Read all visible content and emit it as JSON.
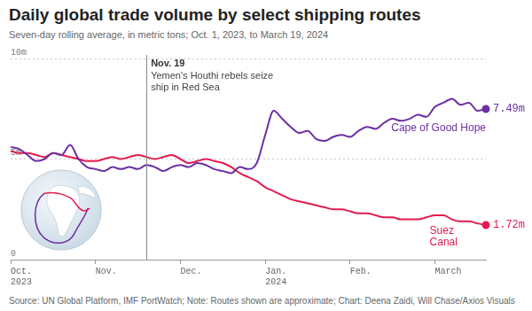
{
  "chart_data": {
    "type": "line",
    "title": "Daily global trade volume by select shipping routes",
    "subtitle": "Seven-day rolling average, in metric tons; Oct. 1, 2023, to March 19, 2024",
    "source": "Source: UN Global Platform, IMF PortWatch; Note: Routes shown are approximate; Chart: Deena Zaidi, Will Chase/Axios Visuals",
    "categories": [
      "Oct. 2023",
      null,
      null,
      null,
      null,
      null,
      null,
      null,
      null,
      null,
      "Nov.",
      null,
      null,
      null,
      null,
      null,
      null,
      null,
      null,
      null,
      "Dec.",
      null,
      null,
      null,
      null,
      null,
      null,
      null,
      null,
      null,
      "Jan. 2024",
      null,
      null,
      null,
      null,
      null,
      null,
      null,
      null,
      null,
      "Feb.",
      null,
      null,
      null,
      null,
      null,
      null,
      null,
      null,
      null,
      "March",
      null,
      null,
      null,
      null,
      null,
      null
    ],
    "series": [
      {
        "name": "Cape of Good Hope",
        "color": "#6b2fa3",
        "values": [
          5.6,
          5.5,
          5.2,
          4.9,
          5.0,
          5.3,
          5.2,
          5.7,
          5.0,
          4.6,
          4.5,
          4.4,
          4.6,
          4.5,
          4.6,
          4.5,
          4.7,
          4.6,
          4.4,
          4.6,
          4.7,
          4.6,
          4.8,
          4.7,
          4.5,
          4.4,
          4.3,
          4.6,
          4.5,
          4.8,
          6.2,
          7.4,
          7.0,
          6.6,
          6.3,
          6.4,
          6.0,
          5.9,
          6.1,
          6.2,
          6.1,
          6.4,
          6.6,
          6.5,
          6.8,
          7.0,
          6.9,
          7.0,
          7.2,
          7.1,
          7.6,
          7.8,
          8.0,
          7.7,
          7.8,
          7.4,
          7.49
        ],
        "value_labels": [
          null,
          null,
          null,
          null,
          null,
          null,
          null,
          null,
          null,
          null,
          null,
          null,
          null,
          null,
          null,
          null,
          null,
          null,
          null,
          null,
          null,
          null,
          null,
          null,
          null,
          null,
          null,
          null,
          null,
          null,
          null,
          null,
          null,
          null,
          null,
          null,
          null,
          null,
          null,
          null,
          null,
          null,
          null,
          null,
          null,
          null,
          null,
          null,
          null,
          null,
          null,
          null,
          null,
          null,
          null,
          null,
          "7.49m"
        ]
      },
      {
        "name": "Suez Canal",
        "color": "#e31b4f",
        "values": [
          5.4,
          5.3,
          5.3,
          5.2,
          5.1,
          5.3,
          5.2,
          5.1,
          5.0,
          4.9,
          4.9,
          5.0,
          5.1,
          5.0,
          5.1,
          5.2,
          5.1,
          5.0,
          5.1,
          5.2,
          5.0,
          4.8,
          4.9,
          5.0,
          4.9,
          4.8,
          4.6,
          4.3,
          4.1,
          3.9,
          3.6,
          3.4,
          3.2,
          3.0,
          2.9,
          2.8,
          2.7,
          2.6,
          2.5,
          2.5,
          2.4,
          2.3,
          2.3,
          2.2,
          2.1,
          2.1,
          2.0,
          2.0,
          2.0,
          2.1,
          2.2,
          2.2,
          2.0,
          1.9,
          1.9,
          1.8,
          1.72
        ],
        "value_labels": [
          null,
          null,
          null,
          null,
          null,
          null,
          null,
          null,
          null,
          null,
          null,
          null,
          null,
          null,
          null,
          null,
          null,
          null,
          null,
          null,
          null,
          null,
          null,
          null,
          null,
          null,
          null,
          null,
          null,
          null,
          null,
          null,
          null,
          null,
          null,
          null,
          null,
          null,
          null,
          null,
          null,
          null,
          null,
          null,
          null,
          null,
          null,
          null,
          null,
          null,
          null,
          null,
          null,
          null,
          null,
          null,
          "1.72m"
        ]
      }
    ],
    "ylim": [
      0,
      10
    ],
    "yticks": [
      0,
      {
        "value": 5,
        "label": "5m"
      },
      {
        "value": 10,
        "label": "10m"
      }
    ],
    "grid": true,
    "annotations": [
      {
        "category_index": 16,
        "label": "Nov. 19",
        "text": "Yemen's Houthi rebels seize ship in Red Sea"
      }
    ]
  }
}
